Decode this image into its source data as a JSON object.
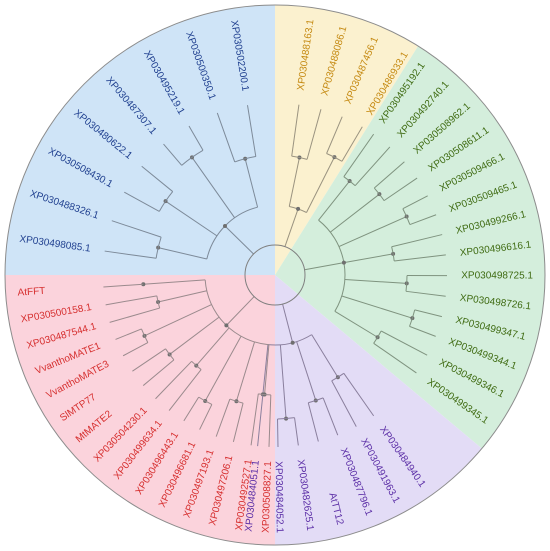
{
  "clades": [
    {
      "key": "blue",
      "fill": "#cfe4f7",
      "text_color": "#1f3f8f",
      "branch_color": "#7d8a99",
      "leaves": [
        "XP030498085.1",
        "XP030488326.1",
        "XP030508430.1",
        "XP030480622.1",
        "XP030487307.1",
        "XP030495219.1",
        "XP030500350.1",
        "XP030502200.1"
      ]
    },
    {
      "key": "yellow",
      "fill": "#fbf1cf",
      "text_color": "#c58a12",
      "branch_color": "#9a9380",
      "leaves": [
        "XP030488163.1",
        "XP030488086.1",
        "XP030487456.1",
        "XP030486933.1"
      ]
    },
    {
      "key": "green",
      "fill": "#d4eedc",
      "text_color": "#3f6b12",
      "branch_color": "#7f937f",
      "leaves": [
        "XP030495192.1",
        "XP030492740.1",
        "XP030508962.1",
        "XP030508611.1",
        "XP030509466.1",
        "XP030509465.1",
        "XP030499266.1",
        "XP030496616.1",
        "XP030498725.1",
        "XP030498726.1",
        "XP030499347.1",
        "XP030499344.1",
        "XP030499346.1",
        "XP030499345.1"
      ]
    },
    {
      "key": "purple",
      "fill": "#e3dcf6",
      "text_color": "#5b2ea6",
      "branch_color": "#8a7f9d",
      "leaves": [
        "XP030484940.1",
        "XP030491963.1",
        "XP030487796.1",
        "AtTT12",
        "XP030482625.1",
        "XP030484052.1",
        "XP030484051.1"
      ]
    },
    {
      "key": "pink",
      "fill": "#fbd3dc",
      "text_color": "#d62f2f",
      "branch_color": "#9a8a8d",
      "leaves": [
        "XP030508827.1",
        "XP030492527.1",
        "XP030497206.1",
        "XP030497193.1",
        "XP030496681.1",
        "XP030496443.1",
        "XP030499634.1",
        "XP030504230.1",
        "MtMATE2",
        "SlMTP77",
        "VvanthoMATE3",
        "VvanthoMATE1",
        "XP030487544.1",
        "XP030500158.1",
        "AtFFT"
      ]
    }
  ]
}
